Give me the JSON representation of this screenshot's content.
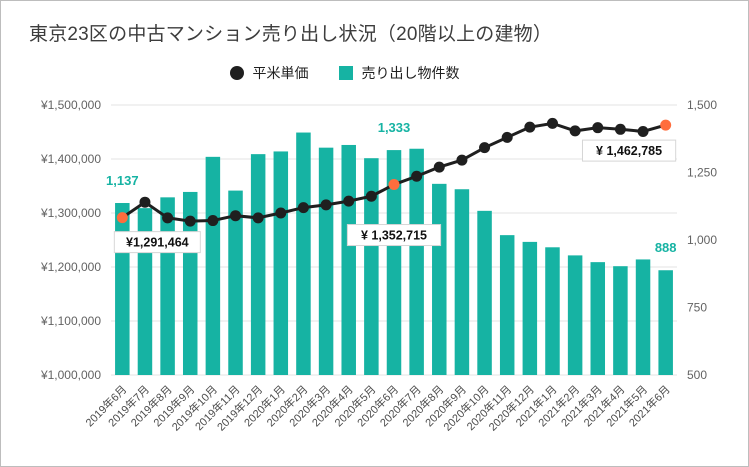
{
  "title": "東京23区の中古マンション売り出し状況（20階以上の建物）",
  "legend": [
    {
      "label": "平米単価",
      "marker": "circle",
      "color": "#1f1f1f"
    },
    {
      "label": "売り出し物件数",
      "marker": "square",
      "color": "#16b3a3"
    }
  ],
  "chart_data": {
    "type": "bar",
    "subtype": "bar+line combo, dual axis",
    "title": "東京23区の中古マンション売り出し状況（20階以上の建物）",
    "categories": [
      "2019年6月",
      "2019年7月",
      "2019年8月",
      "2019年9月",
      "2019年10月",
      "2019年11月",
      "2019年12月",
      "2020年1月",
      "2020年2月",
      "2020年3月",
      "2020年4月",
      "2020年5月",
      "2020年6月",
      "2020年7月",
      "2020年8月",
      "2020年9月",
      "2020年10月",
      "2020年11月",
      "2020年12月",
      "2021年1月",
      "2021年2月",
      "2021年3月",
      "2021年4月",
      "2021年5月",
      "2021年6月"
    ],
    "series": [
      {
        "name": "売り出し物件数",
        "type": "bar",
        "axis": "right",
        "color": "#16b3a3",
        "values": [
          1137,
          1118,
          1158,
          1178,
          1308,
          1183,
          1318,
          1328,
          1398,
          1342,
          1352,
          1303,
          1333,
          1338,
          1208,
          1188,
          1108,
          1018,
          993,
          973,
          943,
          918,
          903,
          928,
          888
        ]
      },
      {
        "name": "平米単価",
        "type": "line",
        "axis": "left",
        "color": "#1f1f1f",
        "values": [
          1291464,
          1320000,
          1291000,
          1285000,
          1286000,
          1295000,
          1291000,
          1300000,
          1310000,
          1315000,
          1322000,
          1331000,
          1352715,
          1368000,
          1385000,
          1398000,
          1421000,
          1440000,
          1459000,
          1466000,
          1452000,
          1458000,
          1455000,
          1451000,
          1462785
        ]
      }
    ],
    "left_axis": {
      "range": [
        1000000,
        1500000
      ],
      "ticks": [
        "¥1,000,000",
        "¥1,100,000",
        "¥1,200,000",
        "¥1,300,000",
        "¥1,400,000",
        "¥1,500,000"
      ]
    },
    "right_axis": {
      "range": [
        500,
        1500
      ],
      "ticks": [
        "500",
        "750",
        "1,000",
        "1,250",
        "1,500"
      ]
    },
    "grid": "horizontal",
    "legend_position": "top-center",
    "highlight_points": [
      0,
      12,
      24
    ],
    "highlight_color": "#ff6d3d",
    "annotations": [
      {
        "series": "bar",
        "index": 0,
        "text": "1,137"
      },
      {
        "series": "bar",
        "index": 12,
        "text": "1,333"
      },
      {
        "series": "bar",
        "index": 24,
        "text": "888"
      },
      {
        "series": "line",
        "index": 0,
        "text": "¥1,291,464",
        "boxed": true,
        "placement": "below-right",
        "dy": 14
      },
      {
        "series": "line",
        "index": 12,
        "text": "¥ 1,352,715",
        "boxed": true,
        "placement": "below",
        "dy": 40
      },
      {
        "series": "line",
        "index": 24,
        "text": "¥ 1,462,785",
        "boxed": true,
        "placement": "below-left",
        "dy": 15
      }
    ]
  }
}
